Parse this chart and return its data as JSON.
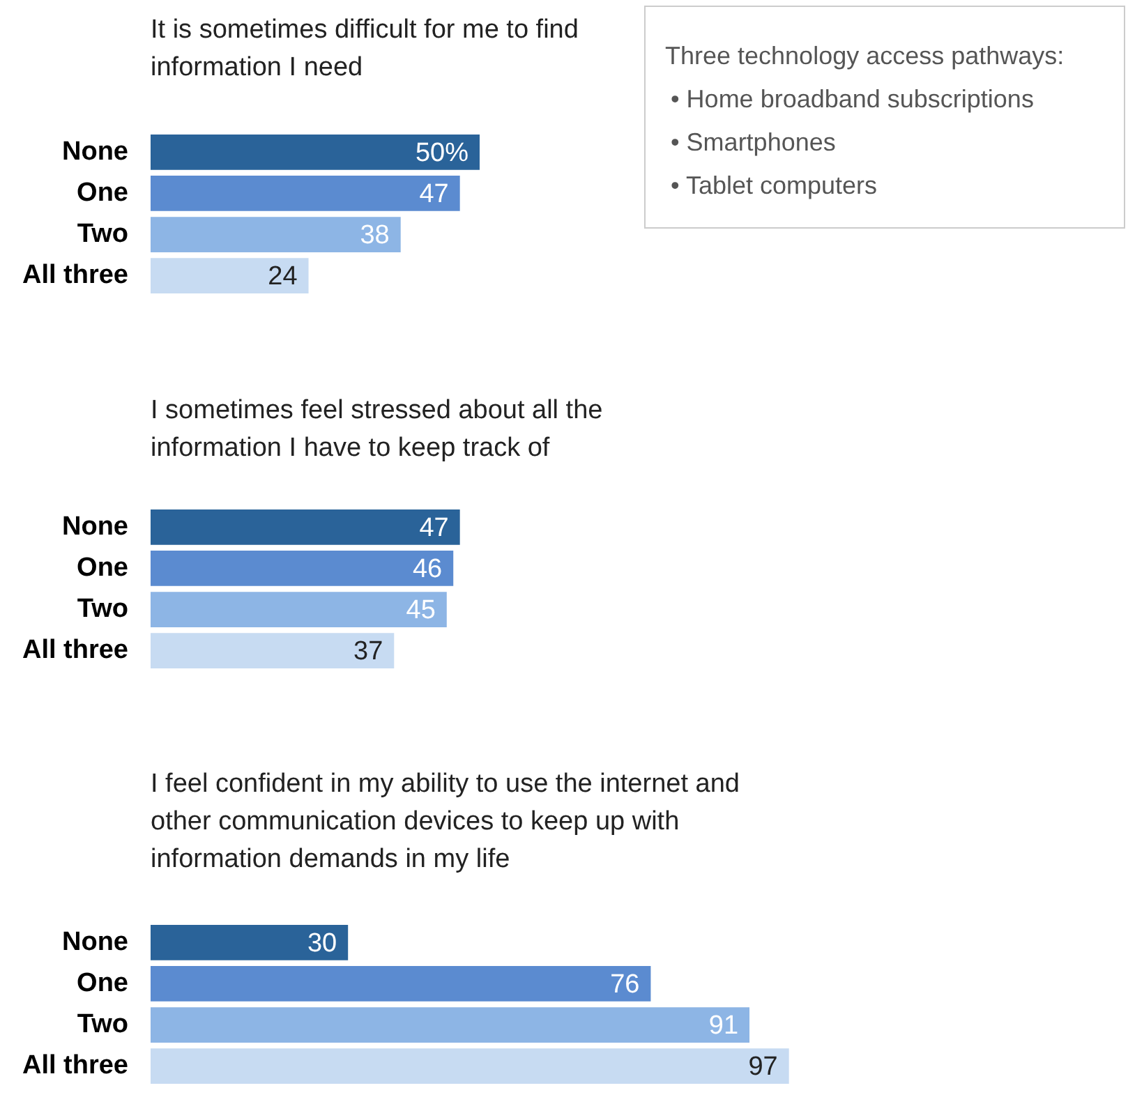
{
  "chart_data": [
    {
      "type": "bar",
      "orientation": "horizontal",
      "title": "It is sometimes difficult for me to find information I need",
      "categories": [
        "None",
        "One",
        "Two",
        "All three"
      ],
      "values": [
        50,
        47,
        38,
        24
      ],
      "value_labels": [
        "50%",
        "47",
        "38",
        "24"
      ],
      "colors": [
        "#2a6399",
        "#5b8bd0",
        "#8db5e5",
        "#c7dbf2"
      ],
      "data_labels": true,
      "grid": false,
      "legend": false,
      "tick_labels": "y"
    },
    {
      "type": "other",
      "title": "Three technology access pathways:",
      "annotations": [
        "• Home broadband subscriptions",
        "• Smartphones",
        "• Tablet computers"
      ]
    },
    {
      "type": "bar",
      "orientation": "horizontal",
      "title": "I sometimes feel stressed about all the information I have to keep track of",
      "categories": [
        "None",
        "One",
        "Two",
        "All three"
      ],
      "values": [
        47,
        46,
        45,
        37
      ],
      "colors": [
        "#2a6399",
        "#5b8bd0",
        "#8db5e5",
        "#c7dbf2"
      ],
      "data_labels": true,
      "grid": false,
      "legend": false,
      "tick_labels": "y"
    },
    {
      "type": "bar",
      "orientation": "horizontal",
      "title": "I feel confident in my ability to use the internet and other communication devices to keep up with information demands in my life",
      "categories": [
        "None",
        "One",
        "Two",
        "All three"
      ],
      "values": [
        30,
        76,
        91,
        97
      ],
      "colors": [
        "#2a6399",
        "#5b8bd0",
        "#8db5e5",
        "#c7dbf2"
      ],
      "data_labels": true,
      "grid": false,
      "legend": false,
      "tick_labels": "y"
    }
  ]
}
